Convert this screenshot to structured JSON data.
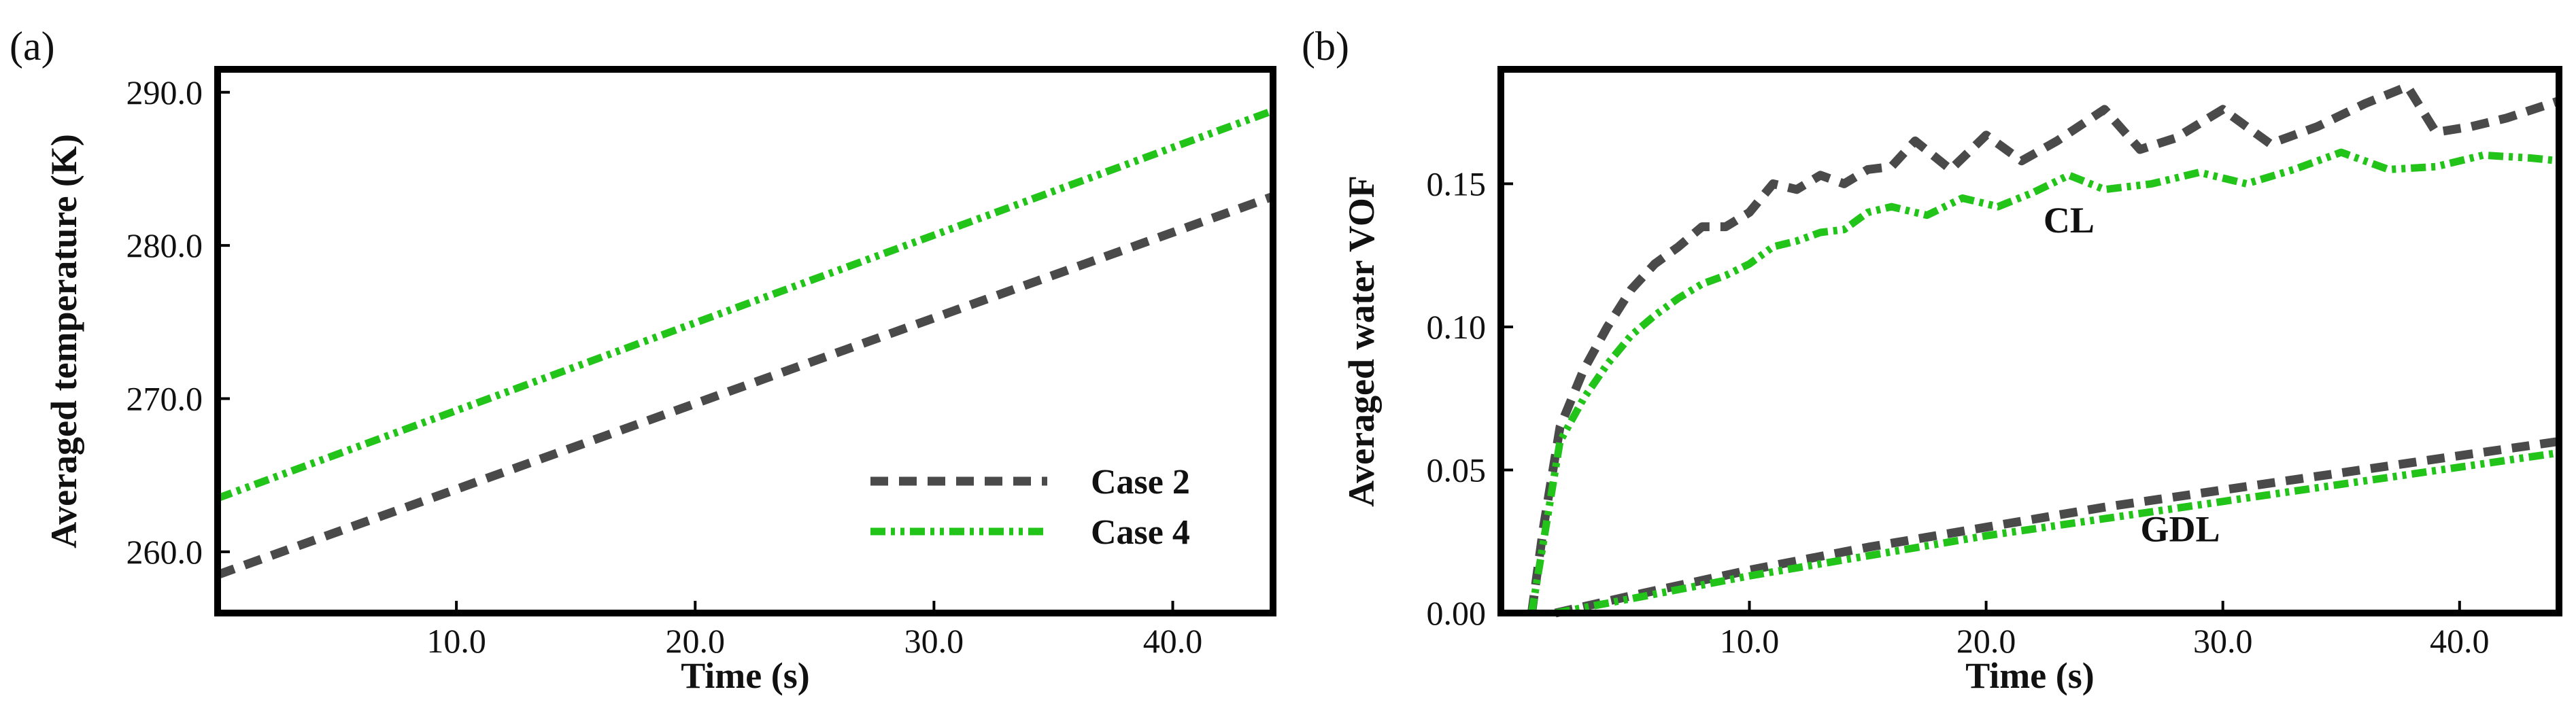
{
  "colors": {
    "case2": "#4a4a4a",
    "case4": "#22c41a",
    "frame": "#000000"
  },
  "chart_data": [
    {
      "panel_label": "(a)",
      "type": "line",
      "title": "",
      "xlabel": "Time (s)",
      "ylabel": "Averaged temperature (K)",
      "xlim": [
        0,
        44.2
      ],
      "ylim": [
        256,
        291.5
      ],
      "xticks": [
        10.0,
        20.0,
        30.0,
        40.0
      ],
      "xtick_labels": [
        "10.0",
        "20.0",
        "30.0",
        "40.0"
      ],
      "yticks": [
        260.0,
        270.0,
        280.0,
        290.0
      ],
      "ytick_labels": [
        "260.0",
        "270.0",
        "280.0",
        "290.0"
      ],
      "grid": false,
      "legend": {
        "position": "bottom-right",
        "entries": [
          {
            "label": "Case 2",
            "series": "case2"
          },
          {
            "label": "Case 4",
            "series": "case4"
          }
        ]
      },
      "series": [
        {
          "name": "Case 2",
          "key": "case2",
          "style": "dashed",
          "x": [
            0,
            44.2
          ],
          "y": [
            258.5,
            283.2
          ]
        },
        {
          "name": "Case 4",
          "key": "case4",
          "style": "dashdot",
          "x": [
            0,
            44.2
          ],
          "y": [
            263.5,
            288.8
          ]
        }
      ],
      "annotations": []
    },
    {
      "panel_label": "(b)",
      "type": "line",
      "title": "",
      "xlabel": "Time (s)",
      "ylabel": "Averaged water VOF",
      "xlim": [
        -0.5,
        44.2
      ],
      "ylim": [
        0,
        0.19
      ],
      "xticks": [
        10.0,
        20.0,
        30.0,
        40.0
      ],
      "xtick_labels": [
        "10.0",
        "20.0",
        "30.0",
        "40.0"
      ],
      "yticks": [
        0.0,
        0.05,
        0.1,
        0.15
      ],
      "ytick_labels": [
        "0.00",
        "0.05",
        "0.10",
        "0.15"
      ],
      "grid": false,
      "legend": null,
      "series": [
        {
          "name": "Case 2 CL",
          "key": "case2",
          "style": "dashed",
          "x": [
            0.8,
            1.3,
            2.0,
            3.0,
            4.0,
            5.0,
            6.0,
            7.0,
            8.0,
            9.0,
            10.0,
            11.0,
            12.0,
            13.0,
            14.0,
            15.0,
            16.0,
            17.0,
            18.5,
            20.0,
            21.5,
            23.0,
            25.0,
            26.5,
            28.0,
            30.0,
            32.0,
            34.0,
            36.0,
            37.8,
            39.0,
            40.5,
            42.0,
            44.2
          ],
          "y": [
            0.0,
            0.03,
            0.065,
            0.085,
            0.1,
            0.113,
            0.122,
            0.128,
            0.135,
            0.135,
            0.14,
            0.15,
            0.148,
            0.153,
            0.15,
            0.155,
            0.156,
            0.165,
            0.155,
            0.167,
            0.158,
            0.165,
            0.176,
            0.162,
            0.166,
            0.176,
            0.164,
            0.17,
            0.178,
            0.184,
            0.168,
            0.17,
            0.173,
            0.179
          ]
        },
        {
          "name": "Case 4 CL",
          "key": "case4",
          "style": "dashdot",
          "x": [
            0.8,
            1.3,
            2.0,
            3.0,
            4.0,
            5.0,
            6.0,
            7.0,
            8.0,
            9.0,
            10.0,
            11.0,
            12.0,
            13.0,
            14.0,
            15.0,
            16.0,
            17.5,
            19.0,
            20.5,
            22.0,
            23.5,
            25.0,
            27.0,
            29.0,
            31.0,
            33.0,
            35.0,
            37.0,
            39.0,
            41.0,
            43.0,
            44.2
          ],
          "y": [
            0.0,
            0.025,
            0.06,
            0.075,
            0.087,
            0.097,
            0.104,
            0.11,
            0.115,
            0.118,
            0.122,
            0.128,
            0.13,
            0.133,
            0.134,
            0.14,
            0.142,
            0.139,
            0.145,
            0.142,
            0.147,
            0.153,
            0.148,
            0.15,
            0.154,
            0.15,
            0.155,
            0.161,
            0.155,
            0.156,
            0.16,
            0.159,
            0.158
          ]
        },
        {
          "name": "Case 2 GDL",
          "key": "case2",
          "style": "dashed",
          "x": [
            1.8,
            5,
            10,
            15,
            20,
            25,
            30,
            35,
            40,
            44.2
          ],
          "y": [
            0.0,
            0.006,
            0.015,
            0.023,
            0.03,
            0.037,
            0.043,
            0.049,
            0.055,
            0.06
          ]
        },
        {
          "name": "Case 4 GDL",
          "key": "case4",
          "style": "dashdot",
          "x": [
            1.8,
            5,
            10,
            15,
            20,
            25,
            30,
            35,
            40,
            44.2
          ],
          "y": [
            0.0,
            0.005,
            0.013,
            0.02,
            0.027,
            0.033,
            0.039,
            0.045,
            0.051,
            0.056
          ]
        }
      ],
      "annotations": [
        {
          "text": "CL",
          "x": 23.5,
          "y": 0.133
        },
        {
          "text": "GDL",
          "x": 28.2,
          "y": 0.025
        }
      ]
    }
  ]
}
